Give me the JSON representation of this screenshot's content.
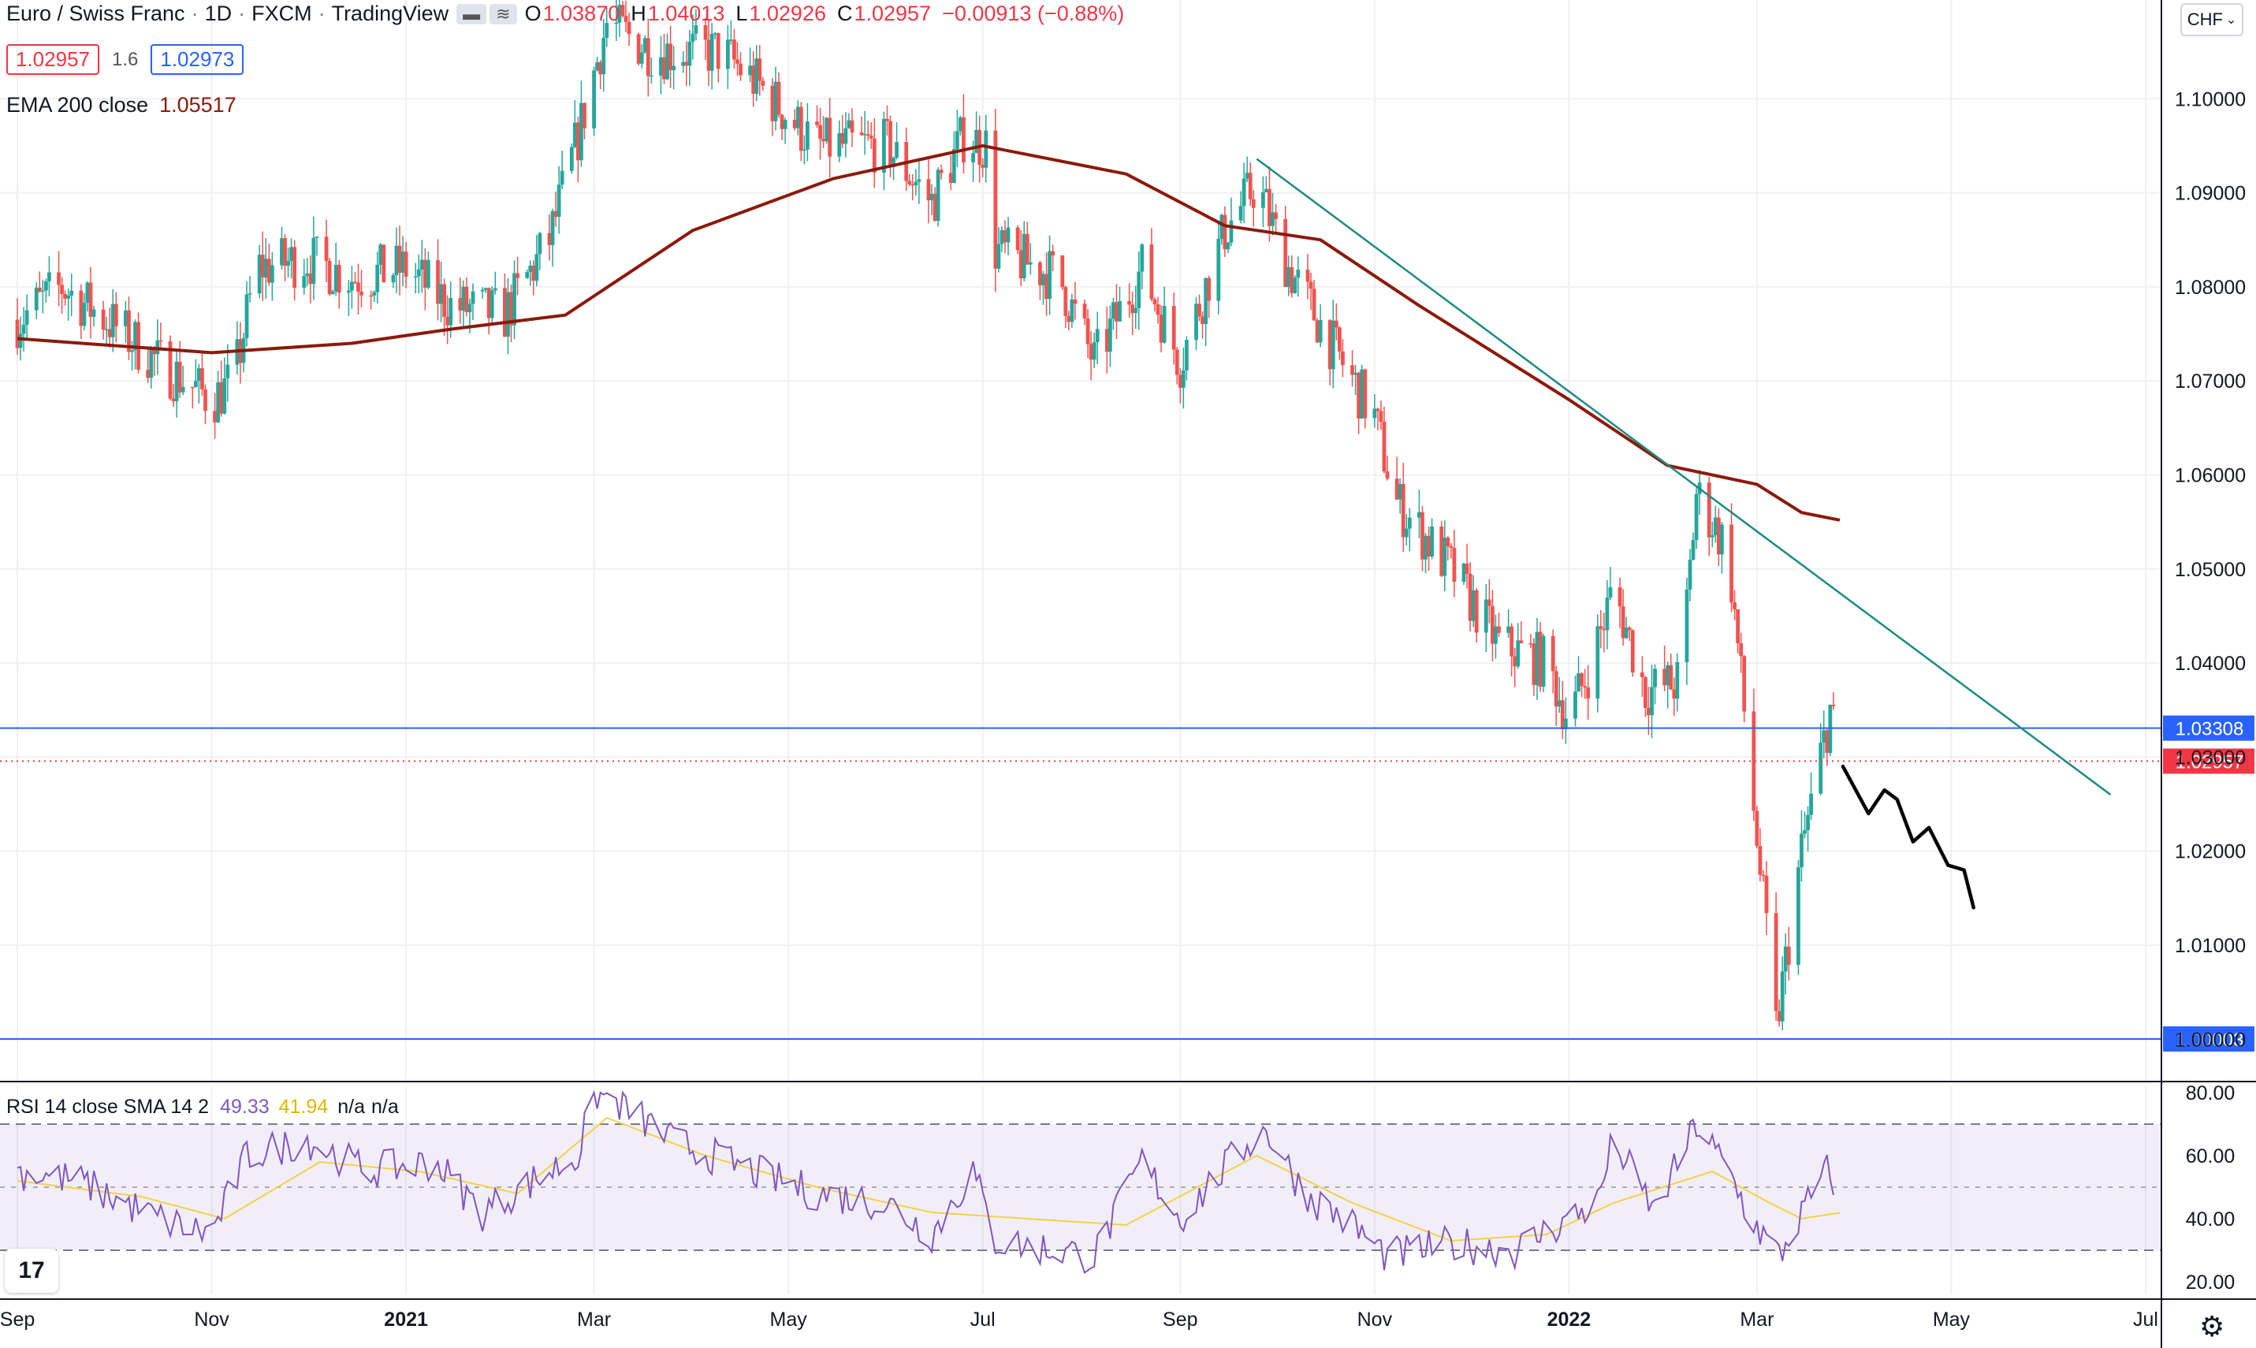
{
  "header": {
    "symbol": "Euro / Swiss Franc",
    "interval": "1D",
    "exchange": "FXCM",
    "platform": "TradingView",
    "ohlc": [
      {
        "k": "O",
        "v": "1.03870"
      },
      {
        "k": "H",
        "v": "1.04013"
      },
      {
        "k": "L",
        "v": "1.02926"
      },
      {
        "k": "C",
        "v": "1.02957"
      }
    ],
    "change": "−0.00913 (−0.88%)",
    "bid": "1.02957",
    "spread": "1.6",
    "ask": "1.02973"
  },
  "ema_legend": {
    "name": "EMA 200 close",
    "value": "1.05517"
  },
  "rsi_legend": {
    "name": "RSI 14 close SMA 14 2",
    "rsi": "49.33",
    "sma": "41.94",
    "na1": "n/a",
    "na2": "n/a"
  },
  "currency_button": "CHF",
  "logo": "17",
  "colors": {
    "bull": "#26a69a",
    "bear": "#ef5350",
    "ema": "#8b1a0b",
    "rsi": "#7e57c2",
    "rsi_sma": "#f0d24a",
    "hline": "#2962ff",
    "trend": "#1c8b80",
    "current": "#f23645"
  },
  "chart_data": [
    {
      "type": "candlestick",
      "title": "Euro / Swiss Franc · 1D · FXCM",
      "x_ticks": [
        {
          "label": "Sep",
          "date": "2020-09-01"
        },
        {
          "label": "Nov",
          "date": "2020-11-01"
        },
        {
          "label": "2021",
          "date": "2021-01-01"
        },
        {
          "label": "Mar",
          "date": "2021-03-01"
        },
        {
          "label": "May",
          "date": "2021-05-01"
        },
        {
          "label": "Jul",
          "date": "2021-07-01"
        },
        {
          "label": "Sep",
          "date": "2021-09-01"
        },
        {
          "label": "Nov",
          "date": "2021-11-01"
        },
        {
          "label": "2022",
          "date": "2022-01-01"
        },
        {
          "label": "Mar",
          "date": "2022-03-01"
        },
        {
          "label": "May",
          "date": "2022-05-01"
        },
        {
          "label": "Jul",
          "date": "2022-07-01"
        }
      ],
      "y_ticks": [
        "1.00000",
        "1.01000",
        "1.02000",
        "1.03000",
        "1.04000",
        "1.05000",
        "1.06000",
        "1.07000",
        "1.08000",
        "1.09000",
        "1.10000"
      ],
      "ylim": [
        0.9955,
        1.1105
      ],
      "price_path": [
        [
          "2020-09-01",
          1.0765
        ],
        [
          "2020-09-15",
          1.08
        ],
        [
          "2020-10-01",
          1.076
        ],
        [
          "2020-10-15",
          1.072
        ],
        [
          "2020-11-01",
          1.068
        ],
        [
          "2020-11-08",
          1.07
        ],
        [
          "2020-11-15",
          1.082
        ],
        [
          "2020-12-01",
          1.083
        ],
        [
          "2020-12-15",
          1.081
        ],
        [
          "2021-01-01",
          1.082
        ],
        [
          "2021-01-15",
          1.078
        ],
        [
          "2021-02-01",
          1.077
        ],
        [
          "2021-02-15",
          1.085
        ],
        [
          "2021-02-24",
          1.096
        ],
        [
          "2021-03-05",
          1.108
        ],
        [
          "2021-03-20",
          1.105
        ],
        [
          "2021-04-10",
          1.105
        ],
        [
          "2021-04-20",
          1.102
        ],
        [
          "2021-05-10",
          1.095
        ],
        [
          "2021-06-01",
          1.095
        ],
        [
          "2021-06-15",
          1.089
        ],
        [
          "2021-06-25",
          1.096
        ],
        [
          "2021-07-02",
          1.095
        ],
        [
          "2021-07-05",
          1.084
        ],
        [
          "2021-07-25",
          1.081
        ],
        [
          "2021-08-05",
          1.072
        ],
        [
          "2021-08-20",
          1.082
        ],
        [
          "2021-09-01",
          1.072
        ],
        [
          "2021-09-15",
          1.086
        ],
        [
          "2021-09-25",
          1.091
        ],
        [
          "2021-10-05",
          1.082
        ],
        [
          "2021-10-20",
          1.073
        ],
        [
          "2021-11-01",
          1.066
        ],
        [
          "2021-11-08",
          1.057
        ],
        [
          "2021-11-25",
          1.05
        ],
        [
          "2021-12-10",
          1.042
        ],
        [
          "2021-12-25",
          1.04
        ],
        [
          "2022-01-01",
          1.034
        ],
        [
          "2022-01-08",
          1.04
        ],
        [
          "2022-01-15",
          1.048
        ],
        [
          "2022-01-25",
          1.037
        ],
        [
          "2022-02-05",
          1.038
        ],
        [
          "2022-02-10",
          1.058
        ],
        [
          "2022-02-20",
          1.052
        ],
        [
          "2022-02-27",
          1.028
        ],
        [
          "2022-03-07",
          1.001
        ],
        [
          "2022-03-15",
          1.02
        ],
        [
          "2022-03-24",
          1.035
        ],
        [
          "2022-03-27",
          1.0296
        ]
      ],
      "ema200": [
        [
          "2020-09-01",
          1.0745
        ],
        [
          "2020-11-01",
          1.073
        ],
        [
          "2020-12-15",
          1.074
        ],
        [
          "2021-01-15",
          1.0755
        ],
        [
          "2021-02-20",
          1.077
        ],
        [
          "2021-04-01",
          1.086
        ],
        [
          "2021-05-15",
          1.0915
        ],
        [
          "2021-07-01",
          1.095
        ],
        [
          "2021-08-15",
          1.092
        ],
        [
          "2021-09-15",
          1.0865
        ],
        [
          "2021-10-15",
          1.085
        ],
        [
          "2021-11-15",
          1.078
        ],
        [
          "2022-01-01",
          1.068
        ],
        [
          "2022-02-01",
          1.061
        ],
        [
          "2022-03-01",
          1.059
        ],
        [
          "2022-03-15",
          1.056
        ],
        [
          "2022-03-27",
          1.0552
        ]
      ],
      "ema200_last": "1.05517",
      "horizontal_lines": [
        {
          "value": 1.03308,
          "label": "1.03308"
        },
        {
          "value": 1.00003,
          "label": "1.00003"
        }
      ],
      "current_price": {
        "value": 1.02957,
        "label": "1.02957"
      },
      "trendline": [
        [
          "2021-09-25",
          1.0936
        ],
        [
          "2022-06-20",
          1.026
        ]
      ],
      "drawn_projection": [
        [
          "2022-03-28",
          1.029
        ],
        [
          "2022-04-05",
          1.024
        ],
        [
          "2022-04-10",
          1.0265
        ],
        [
          "2022-04-14",
          1.0255
        ],
        [
          "2022-04-19",
          1.021
        ],
        [
          "2022-04-24",
          1.0225
        ],
        [
          "2022-04-30",
          1.0185
        ],
        [
          "2022-05-05",
          1.018
        ],
        [
          "2022-05-08",
          1.014
        ]
      ]
    },
    {
      "type": "line",
      "title": "RSI 14 close SMA 14 2",
      "y_ticks": [
        "20.00",
        "40.00",
        "60.00",
        "80.00"
      ],
      "ylim": [
        16,
        82
      ],
      "bands": [
        30,
        50,
        70
      ],
      "rsi": [
        [
          "2020-09-01",
          55
        ],
        [
          "2020-09-20",
          52
        ],
        [
          "2020-10-15",
          40
        ],
        [
          "2020-11-01",
          35
        ],
        [
          "2020-11-12",
          60
        ],
        [
          "2020-12-01",
          65
        ],
        [
          "2020-12-20",
          55
        ],
        [
          "2021-01-10",
          58
        ],
        [
          "2021-01-25",
          42
        ],
        [
          "2021-02-10",
          52
        ],
        [
          "2021-02-24",
          60
        ],
        [
          "2021-03-01",
          80
        ],
        [
          "2021-03-10",
          76
        ],
        [
          "2021-03-25",
          65
        ],
        [
          "2021-04-20",
          55
        ],
        [
          "2021-05-10",
          48
        ],
        [
          "2021-06-01",
          45
        ],
        [
          "2021-06-15",
          35
        ],
        [
          "2021-06-28",
          55
        ],
        [
          "2021-07-05",
          33
        ],
        [
          "2021-08-05",
          28
        ],
        [
          "2021-08-20",
          58
        ],
        [
          "2021-09-01",
          40
        ],
        [
          "2021-09-20",
          62
        ],
        [
          "2021-09-28",
          68
        ],
        [
          "2021-10-10",
          48
        ],
        [
          "2021-10-25",
          38
        ],
        [
          "2021-11-05",
          28
        ],
        [
          "2021-11-25",
          32
        ],
        [
          "2021-12-15",
          30
        ],
        [
          "2022-01-01",
          40
        ],
        [
          "2022-01-10",
          45
        ],
        [
          "2022-01-15",
          65
        ],
        [
          "2022-01-28",
          42
        ],
        [
          "2022-02-10",
          70
        ],
        [
          "2022-02-20",
          55
        ],
        [
          "2022-02-27",
          40
        ],
        [
          "2022-03-08",
          28
        ],
        [
          "2022-03-17",
          45
        ],
        [
          "2022-03-23",
          55
        ],
        [
          "2022-03-27",
          49.3
        ]
      ],
      "rsi_sma": [
        [
          "2020-09-01",
          52
        ],
        [
          "2020-10-10",
          47
        ],
        [
          "2020-11-05",
          40
        ],
        [
          "2020-12-05",
          58
        ],
        [
          "2021-01-05",
          55
        ],
        [
          "2021-02-05",
          48
        ],
        [
          "2021-03-05",
          72
        ],
        [
          "2021-04-05",
          60
        ],
        [
          "2021-05-10",
          50
        ],
        [
          "2021-06-15",
          42
        ],
        [
          "2021-07-15",
          40
        ],
        [
          "2021-08-15",
          38
        ],
        [
          "2021-09-25",
          60
        ],
        [
          "2021-10-25",
          45
        ],
        [
          "2021-11-25",
          33
        ],
        [
          "2021-12-25",
          35
        ],
        [
          "2022-01-15",
          45
        ],
        [
          "2022-02-15",
          55
        ],
        [
          "2022-03-05",
          45
        ],
        [
          "2022-03-15",
          40
        ],
        [
          "2022-03-27",
          41.9
        ]
      ],
      "last_values": {
        "rsi": "49.33",
        "sma": "41.94"
      }
    }
  ]
}
